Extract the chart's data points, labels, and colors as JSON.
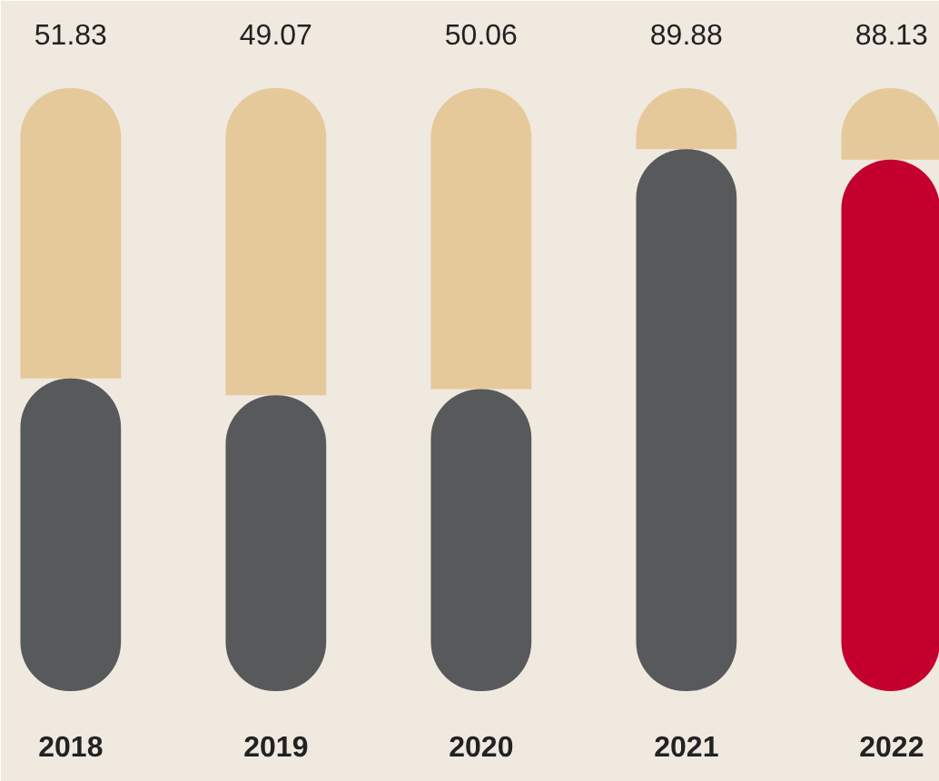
{
  "chart_data": {
    "type": "bar",
    "stacked": true,
    "categories": [
      "2018",
      "2019",
      "2020",
      "2021",
      "2022"
    ],
    "series": [
      {
        "colors": [
          "#58595b",
          "#58595b",
          "#58595b",
          "#58595b",
          "#c4002f"
        ],
        "values": [
          51.83,
          49.07,
          50.06,
          89.88,
          88.13
        ],
        "value_labels": [
          "51.83",
          "49.07",
          "50.06",
          "89.88",
          "88.13"
        ]
      },
      {
        "color": "#e6c99a",
        "values": [
          48.17,
          50.93,
          49.94,
          10.12,
          11.87
        ]
      }
    ]
  }
}
